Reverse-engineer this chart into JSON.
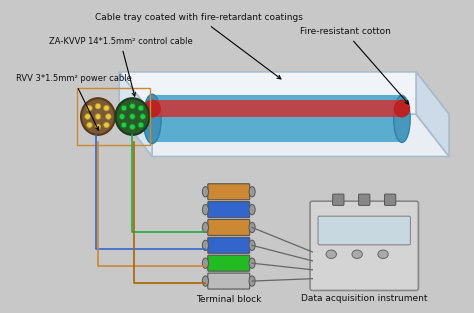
{
  "title": "",
  "bg_color": "#c8c8c8",
  "labels": {
    "cable_tray": "Cable tray coated with fire-retardant coatings",
    "za_kvvp": "ZA-KVVP 14*1.5mm² control cable",
    "rvv": "RVV 3*1.5mm² power cable",
    "fire_cotton": "Fire-resistant cotton",
    "terminal": "Terminal block",
    "data_acq": "Data acquisition instrument"
  },
  "tray_color": "#dce8f0",
  "tray_edge": "#b0c4d8",
  "cable_blue": "#5aadcf",
  "cable_red": "#cc3333",
  "wire_colors": [
    "#e8c840",
    "#228b22",
    "#cc3333",
    "#2244aa"
  ],
  "terminal_colors": [
    "#aaaaaa",
    "#22bb22",
    "#3366cc",
    "#cc8833",
    "#3366cc",
    "#cc8833"
  ],
  "instrument_color": "#d4d4d4",
  "instrument_edge": "#888888",
  "line_blue": "#3366cc",
  "line_orange": "#cc8833",
  "line_green": "#22aa44",
  "line_gray": "#666666"
}
